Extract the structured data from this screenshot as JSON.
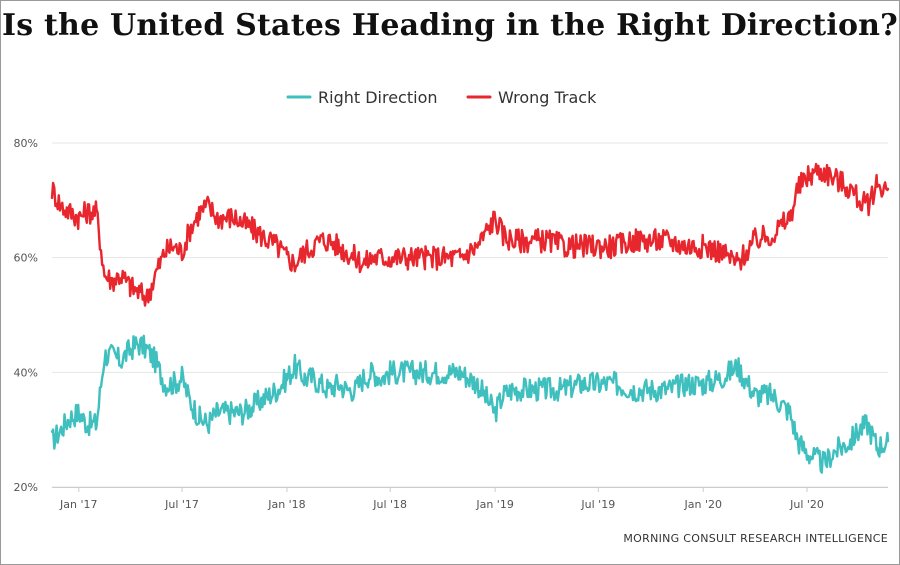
{
  "source_label": "MORNING CONSULT RESEARCH INTELLIGENCE",
  "colors": {
    "right_direction": "#3fbfbe",
    "wrong_track": "#e8262d",
    "grid": "#e6e6e6",
    "text": "#444444"
  },
  "chart_data": {
    "type": "line",
    "title": "Is the United States Heading in the Right Direction?",
    "xlabel": "",
    "ylabel": "",
    "ylim": [
      20,
      80
    ],
    "yticks": [
      20,
      40,
      60,
      80
    ],
    "ytick_labels": [
      "20%",
      "40%",
      "60%",
      "80%"
    ],
    "xlim": [
      "2016-11-15",
      "2020-11-20"
    ],
    "xticks": [
      "2017-01-01",
      "2017-07-01",
      "2018-01-01",
      "2018-07-01",
      "2019-01-01",
      "2019-07-01",
      "2020-01-01",
      "2020-07-01"
    ],
    "xtick_labels": [
      "Jan '17",
      "Jul '17",
      "Jan '18",
      "Jul '18",
      "Jan '19",
      "Jul '19",
      "Jan '20",
      "Jul '20"
    ],
    "grid": true,
    "legend_position": "top-center",
    "series": [
      {
        "name": "Right Direction",
        "color": "#3fbfbe",
        "points": [
          [
            "2016-11-15",
            28
          ],
          [
            "2016-12-01",
            30
          ],
          [
            "2016-12-15",
            32
          ],
          [
            "2017-01-01",
            33
          ],
          [
            "2017-01-15",
            31
          ],
          [
            "2017-02-01",
            31
          ],
          [
            "2017-02-15",
            43
          ],
          [
            "2017-03-01",
            43
          ],
          [
            "2017-03-15",
            42
          ],
          [
            "2017-04-01",
            44
          ],
          [
            "2017-04-15",
            45
          ],
          [
            "2017-05-01",
            44
          ],
          [
            "2017-05-15",
            42
          ],
          [
            "2017-06-01",
            38
          ],
          [
            "2017-06-15",
            38
          ],
          [
            "2017-07-01",
            39
          ],
          [
            "2017-07-15",
            35
          ],
          [
            "2017-08-01",
            32
          ],
          [
            "2017-08-15",
            31
          ],
          [
            "2017-09-01",
            33
          ],
          [
            "2017-09-15",
            33
          ],
          [
            "2017-10-01",
            33
          ],
          [
            "2017-10-15",
            33
          ],
          [
            "2017-11-01",
            34
          ],
          [
            "2017-11-15",
            35
          ],
          [
            "2017-12-01",
            36
          ],
          [
            "2017-12-15",
            37
          ],
          [
            "2018-01-01",
            39
          ],
          [
            "2018-01-15",
            41
          ],
          [
            "2018-02-01",
            39
          ],
          [
            "2018-02-15",
            39
          ],
          [
            "2018-03-01",
            38
          ],
          [
            "2018-03-15",
            37
          ],
          [
            "2018-04-01",
            38
          ],
          [
            "2018-04-15",
            37
          ],
          [
            "2018-05-01",
            37
          ],
          [
            "2018-05-15",
            39
          ],
          [
            "2018-06-01",
            40
          ],
          [
            "2018-06-15",
            39
          ],
          [
            "2018-07-01",
            40
          ],
          [
            "2018-08-01",
            40
          ],
          [
            "2018-09-01",
            40
          ],
          [
            "2018-10-01",
            40
          ],
          [
            "2018-11-01",
            40
          ],
          [
            "2018-12-01",
            38
          ],
          [
            "2019-01-01",
            33
          ],
          [
            "2019-01-15",
            36
          ],
          [
            "2019-02-01",
            37
          ],
          [
            "2019-03-01",
            37
          ],
          [
            "2019-04-01",
            37
          ],
          [
            "2019-05-01",
            37
          ],
          [
            "2019-06-01",
            38
          ],
          [
            "2019-07-01",
            38
          ],
          [
            "2019-08-01",
            38
          ],
          [
            "2019-09-01",
            37
          ],
          [
            "2019-10-01",
            37
          ],
          [
            "2019-11-01",
            37
          ],
          [
            "2019-12-01",
            38
          ],
          [
            "2020-01-01",
            38
          ],
          [
            "2020-02-01",
            39
          ],
          [
            "2020-03-01",
            41
          ],
          [
            "2020-04-01",
            36
          ],
          [
            "2020-05-01",
            36
          ],
          [
            "2020-06-01",
            33
          ],
          [
            "2020-06-15",
            28
          ],
          [
            "2020-07-01",
            26
          ],
          [
            "2020-07-15",
            25
          ],
          [
            "2020-08-01",
            24
          ],
          [
            "2020-08-15",
            26
          ],
          [
            "2020-09-01",
            27
          ],
          [
            "2020-09-15",
            28
          ],
          [
            "2020-10-01",
            30
          ],
          [
            "2020-10-15",
            31
          ],
          [
            "2020-11-01",
            27
          ],
          [
            "2020-11-20",
            28
          ]
        ]
      },
      {
        "name": "Wrong Track",
        "color": "#e8262d",
        "points": [
          [
            "2016-11-15",
            72
          ],
          [
            "2016-12-01",
            69
          ],
          [
            "2016-12-15",
            68
          ],
          [
            "2017-01-01",
            67
          ],
          [
            "2017-01-15",
            68
          ],
          [
            "2017-02-01",
            68
          ],
          [
            "2017-02-15",
            57
          ],
          [
            "2017-03-01",
            56
          ],
          [
            "2017-03-15",
            57
          ],
          [
            "2017-04-01",
            55
          ],
          [
            "2017-04-15",
            54
          ],
          [
            "2017-05-01",
            53
          ],
          [
            "2017-05-15",
            57
          ],
          [
            "2017-06-01",
            61
          ],
          [
            "2017-06-15",
            62
          ],
          [
            "2017-07-01",
            61
          ],
          [
            "2017-07-15",
            65
          ],
          [
            "2017-08-01",
            68
          ],
          [
            "2017-08-15",
            69
          ],
          [
            "2017-09-01",
            67
          ],
          [
            "2017-09-15",
            67
          ],
          [
            "2017-10-01",
            67
          ],
          [
            "2017-10-15",
            66
          ],
          [
            "2017-11-01",
            65
          ],
          [
            "2017-11-15",
            64
          ],
          [
            "2017-12-01",
            63
          ],
          [
            "2017-12-15",
            62
          ],
          [
            "2018-01-01",
            60
          ],
          [
            "2018-01-15",
            59
          ],
          [
            "2018-02-01",
            61
          ],
          [
            "2018-02-15",
            62
          ],
          [
            "2018-03-01",
            63
          ],
          [
            "2018-03-15",
            63
          ],
          [
            "2018-04-01",
            62
          ],
          [
            "2018-04-15",
            61
          ],
          [
            "2018-05-01",
            60
          ],
          [
            "2018-05-15",
            59
          ],
          [
            "2018-06-01",
            60
          ],
          [
            "2018-06-15",
            60
          ],
          [
            "2018-07-01",
            60
          ],
          [
            "2018-08-01",
            60
          ],
          [
            "2018-09-01",
            60
          ],
          [
            "2018-10-01",
            60
          ],
          [
            "2018-11-01",
            60
          ],
          [
            "2018-12-01",
            62
          ],
          [
            "2019-01-01",
            67
          ],
          [
            "2019-01-15",
            64
          ],
          [
            "2019-02-01",
            63
          ],
          [
            "2019-03-01",
            63
          ],
          [
            "2019-04-01",
            63
          ],
          [
            "2019-05-01",
            62
          ],
          [
            "2019-06-01",
            62
          ],
          [
            "2019-07-01",
            62
          ],
          [
            "2019-08-01",
            62
          ],
          [
            "2019-09-01",
            63
          ],
          [
            "2019-10-01",
            63
          ],
          [
            "2019-11-01",
            63
          ],
          [
            "2019-12-01",
            62
          ],
          [
            "2020-01-01",
            62
          ],
          [
            "2020-02-01",
            61
          ],
          [
            "2020-03-01",
            59
          ],
          [
            "2020-04-01",
            63
          ],
          [
            "2020-05-01",
            64
          ],
          [
            "2020-06-01",
            67
          ],
          [
            "2020-06-15",
            72
          ],
          [
            "2020-07-01",
            74
          ],
          [
            "2020-07-15",
            75
          ],
          [
            "2020-08-01",
            75
          ],
          [
            "2020-08-15",
            74
          ],
          [
            "2020-09-01",
            73
          ],
          [
            "2020-09-15",
            72
          ],
          [
            "2020-10-01",
            70
          ],
          [
            "2020-10-15",
            69
          ],
          [
            "2020-11-01",
            73
          ],
          [
            "2020-11-20",
            72
          ]
        ]
      }
    ]
  }
}
